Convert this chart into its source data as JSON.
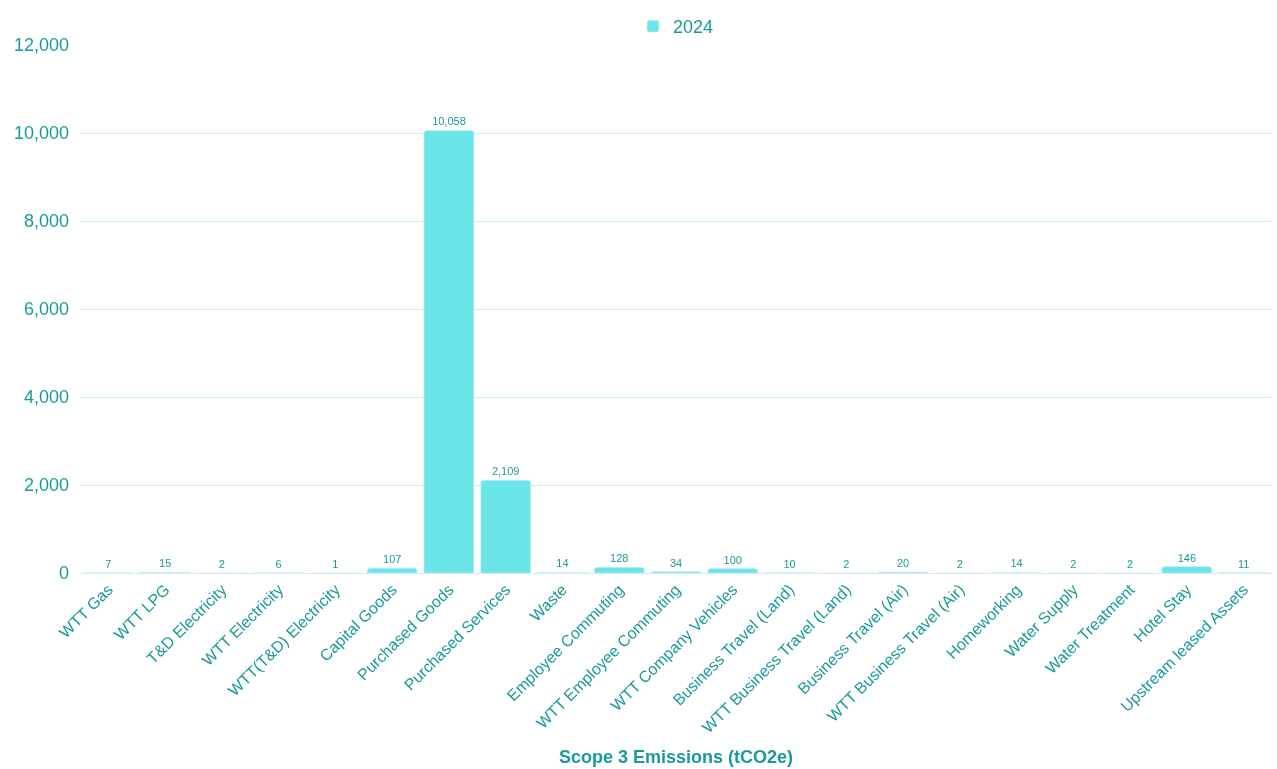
{
  "chart_data": {
    "type": "bar",
    "xlabel": "Scope 3 Emissions (tCO2e)",
    "categories": [
      "WTT Gas",
      "WTT LPG",
      "T&D Electricity",
      "WTT Electricity",
      "WTT(T&D) Electricity",
      "Capital Goods",
      "Purchased Goods",
      "Purchased Services",
      "Waste",
      "Employee Commuting",
      "WTT Employee Commuting",
      "WTT Company Vehicles",
      "Business Travel (Land)",
      "WTT Business Travel (Land)",
      "Business Travel (Air)",
      "WTT Business Travel (Air)",
      "Homeworking",
      "Water Supply",
      "Water Treatment",
      "Hotel Stay",
      "Upstream leased Assets"
    ],
    "series": [
      {
        "name": "2024",
        "color": "#6ae6e8",
        "values": [
          7,
          15,
          2,
          6,
          1,
          107,
          10058,
          2109,
          14,
          128,
          34,
          100,
          10,
          2,
          20,
          2,
          14,
          2,
          2,
          146,
          11
        ],
        "value_labels": [
          "7",
          "15",
          "2",
          "6",
          "1",
          "107",
          "10,058",
          "2,109",
          "14",
          "128",
          "34",
          "100",
          "10",
          "2",
          "20",
          "2",
          "14",
          "2",
          "2",
          "146",
          "11"
        ]
      }
    ],
    "ylim": [
      0,
      12000
    ],
    "yticks": [
      0,
      {
        "value": 2000,
        "label": "2,000"
      },
      {
        "value": 4000,
        "label": "4,000"
      },
      {
        "value": 6000,
        "label": "6,000"
      },
      {
        "value": 8000,
        "label": "8,000"
      },
      {
        "value": 10000,
        "label": "10,000"
      },
      {
        "value": 12000,
        "label": "12,000"
      }
    ],
    "grid": "y",
    "legend": "top"
  }
}
